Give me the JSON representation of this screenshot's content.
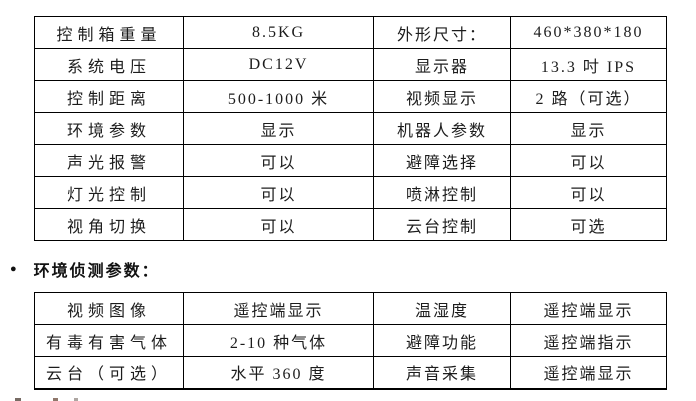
{
  "page": {
    "background": "#ffffff",
    "text_color": "#1c1c1c",
    "border_color": "#000000"
  },
  "heading": {
    "bullet": "●",
    "label": "环境侦测参数："
  },
  "control_box_spec_table": {
    "rows": [
      [
        "控制箱重量",
        "8.5KG",
        "外形尺寸：",
        "460*380*180"
      ],
      [
        "系统电压",
        "DC12V",
        "显示器",
        "13.3 吋 IPS"
      ],
      [
        "控制距离",
        "500-1000 米",
        "视频显示",
        "2 路（可选）"
      ],
      [
        "环境参数",
        "显示",
        "机器人参数",
        "显示"
      ],
      [
        "声光报警",
        "可以",
        "避障选择",
        "可以"
      ],
      [
        "灯光控制",
        "可以",
        "喷淋控制",
        "可以"
      ],
      [
        "视角切换",
        "可以",
        "云台控制",
        "可选"
      ]
    ]
  },
  "environment_detection_table": {
    "rows": [
      [
        "视频图像",
        "遥控端显示",
        "温湿度",
        "遥控端显示"
      ],
      [
        "有毒有害气体",
        "2-10 种气体",
        "避障功能",
        "遥控端指示"
      ],
      [
        "云台（可选）",
        "水平 360 度",
        "声音采集",
        "遥控端显示"
      ]
    ]
  }
}
